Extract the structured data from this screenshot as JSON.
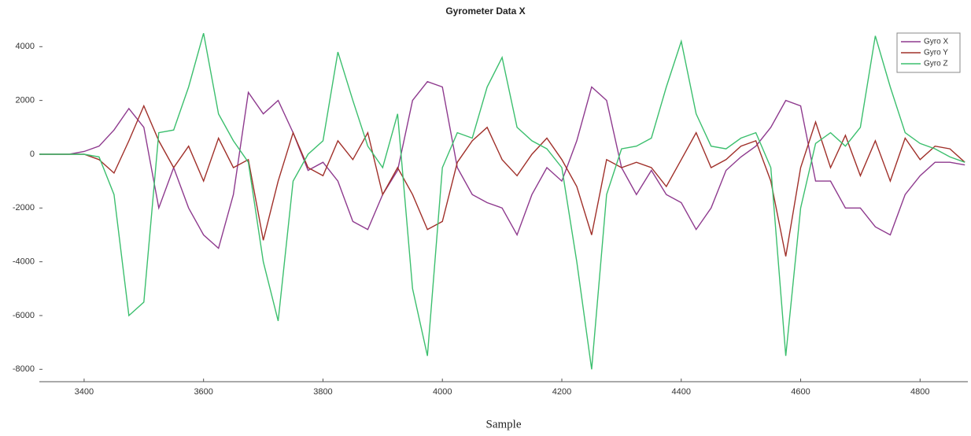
{
  "chart_data": {
    "type": "line",
    "title": "Gyrometer Data X",
    "x_label": "Sample",
    "x": [
      3325,
      3350,
      3375,
      3400,
      3425,
      3450,
      3475,
      3500,
      3525,
      3550,
      3575,
      3600,
      3625,
      3650,
      3675,
      3700,
      3725,
      3750,
      3775,
      3800,
      3825,
      3850,
      3875,
      3900,
      3925,
      3950,
      3975,
      4000,
      4025,
      4050,
      4075,
      4100,
      4125,
      4150,
      4175,
      4200,
      4225,
      4250,
      4275,
      4300,
      4325,
      4350,
      4375,
      4400,
      4425,
      4450,
      4475,
      4500,
      4525,
      4550,
      4575,
      4600,
      4625,
      4650,
      4675,
      4700,
      4725,
      4750,
      4775,
      4800,
      4825,
      4850,
      4875
    ],
    "series": [
      {
        "name": "Gyro X",
        "color": "#8e3a8e",
        "values": [
          0,
          0,
          0,
          100,
          300,
          900,
          1700,
          1000,
          -2000,
          -500,
          -2000,
          -3000,
          -3500,
          -1500,
          2300,
          1500,
          2000,
          800,
          -600,
          -300,
          -1000,
          -2500,
          -2800,
          -1500,
          -600,
          2000,
          2700,
          2500,
          -500,
          -1500,
          -1800,
          -2000,
          -3000,
          -1500,
          -500,
          -1000,
          500,
          2500,
          2000,
          -500,
          -1500,
          -600,
          -1500,
          -1800,
          -2800,
          -2000,
          -600,
          -100,
          300,
          1000,
          2000,
          1800,
          -1000,
          -1000,
          -2000,
          -2000,
          -2700,
          -3000,
          -1500,
          -800,
          -300,
          -300,
          -400
        ]
      },
      {
        "name": "Gyro Y",
        "color": "#a0302a",
        "values": [
          0,
          0,
          0,
          0,
          -200,
          -700,
          500,
          1800,
          500,
          -500,
          300,
          -1000,
          600,
          -500,
          -200,
          -3200,
          -1000,
          800,
          -500,
          -800,
          500,
          -200,
          800,
          -1500,
          -500,
          -1500,
          -2800,
          -2500,
          -300,
          500,
          1000,
          -200,
          -800,
          0,
          600,
          -200,
          -1200,
          -3000,
          -200,
          -500,
          -300,
          -500,
          -1200,
          -200,
          800,
          -500,
          -200,
          300,
          500,
          -1000,
          -3800,
          -500,
          1200,
          -500,
          700,
          -800,
          500,
          -1000,
          600,
          -200,
          300,
          200,
          -300
        ]
      },
      {
        "name": "Gyro Z",
        "color": "#3cbf6e",
        "values": [
          0,
          0,
          0,
          0,
          -100,
          -1500,
          -6000,
          -5500,
          800,
          900,
          2500,
          4500,
          1500,
          500,
          -300,
          -4000,
          -6200,
          -1000,
          0,
          500,
          3800,
          2000,
          300,
          -500,
          1500,
          -5000,
          -7500,
          -500,
          800,
          600,
          2500,
          3600,
          1000,
          500,
          200,
          -500,
          -4000,
          -8000,
          -1500,
          200,
          300,
          600,
          2500,
          4200,
          1500,
          300,
          200,
          600,
          800,
          -500,
          -7500,
          -2000,
          400,
          800,
          300,
          1000,
          4400,
          2500,
          800,
          400,
          200,
          -100,
          -300
        ]
      }
    ],
    "xlim": [
      3325,
      4880
    ],
    "xticks": [
      3400,
      3600,
      3800,
      4000,
      4200,
      4400,
      4600,
      4800
    ],
    "ylim": [
      -8460,
      5150
    ],
    "yticks": [
      -8000,
      -6000,
      -4000,
      -2000,
      0,
      2000,
      4000
    ],
    "grid": false,
    "legend": "upper right"
  }
}
